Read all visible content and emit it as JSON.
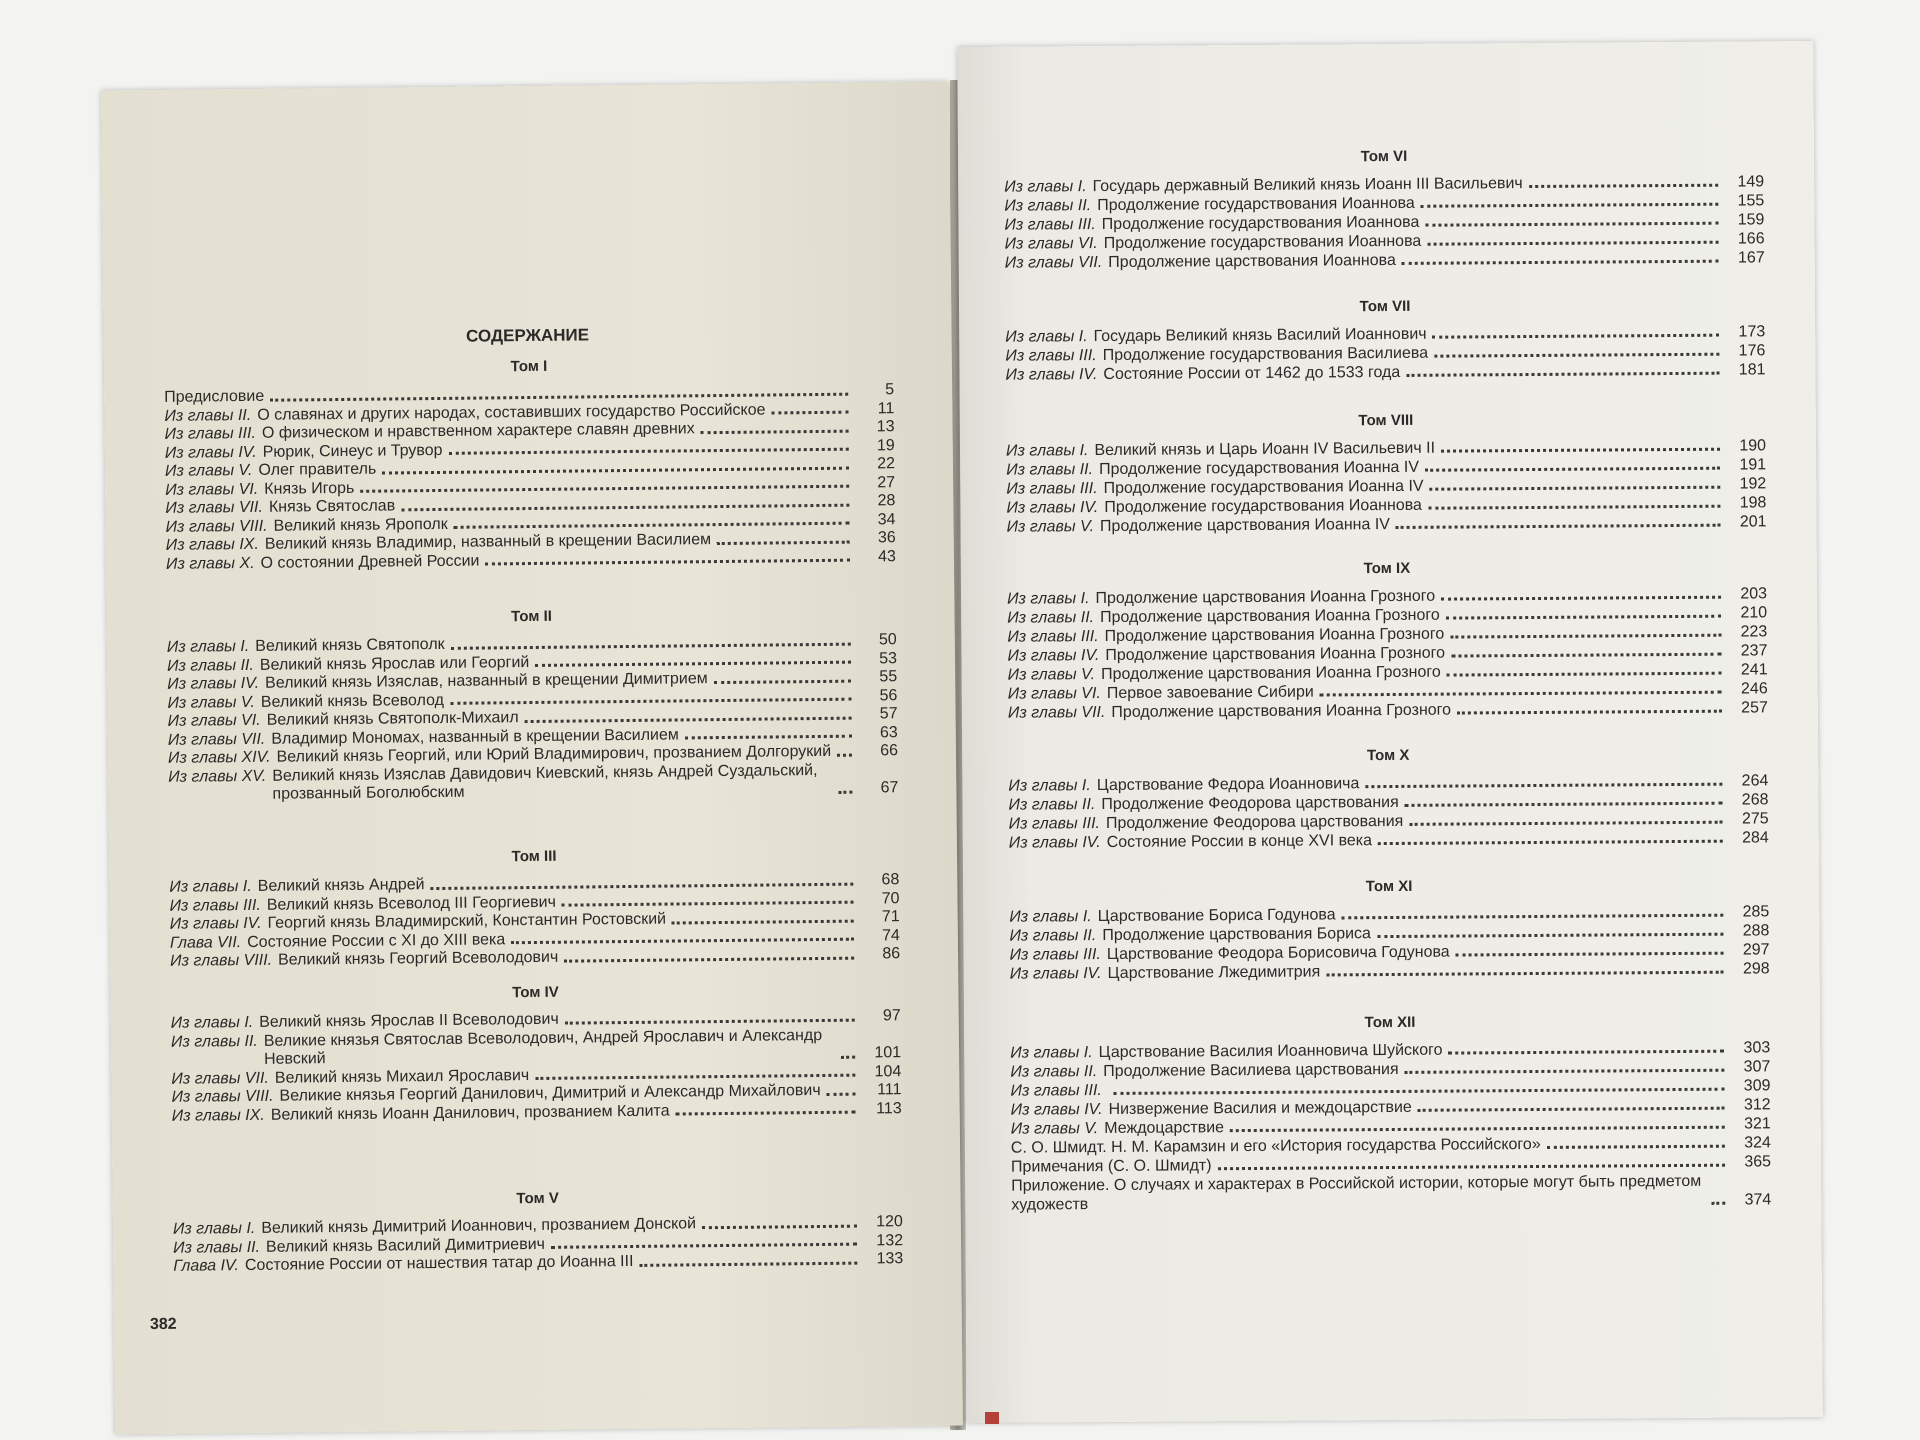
{
  "toc_title": "СОДЕРЖАНИЕ",
  "folio_left": "382",
  "colors": {
    "paper_left": "#e6e2d5",
    "paper_right": "#eceae4",
    "ink": "#2b2a28"
  },
  "left_sections": [
    {
      "heading": "Том I",
      "entries": [
        {
          "prefix": "",
          "text": "Предисловие",
          "page": "5"
        },
        {
          "prefix": "Из главы II.",
          "text": "О славянах и других народах, составивших государство Российское",
          "page": "11"
        },
        {
          "prefix": "Из главы III.",
          "text": "О физическом и нравственном характере славян древних",
          "page": "13"
        },
        {
          "prefix": "Из главы IV.",
          "text": "Рюрик, Синеус и Трувор",
          "page": "19"
        },
        {
          "prefix": "Из главы V.",
          "text": "Олег правитель",
          "page": "22"
        },
        {
          "prefix": "Из главы VI.",
          "text": "Князь Игорь",
          "page": "27"
        },
        {
          "prefix": "Из главы VII.",
          "text": "Князь Святослав",
          "page": "28"
        },
        {
          "prefix": "Из главы VIII.",
          "text": "Великий князь Ярополк",
          "page": "34"
        },
        {
          "prefix": "Из главы IX.",
          "text": "Великий князь Владимир, названный в крещении Василием",
          "page": "36"
        },
        {
          "prefix": "Из главы X.",
          "text": "О состоянии Древней России",
          "page": "43"
        }
      ]
    },
    {
      "heading": "Том II",
      "entries": [
        {
          "prefix": "Из главы I.",
          "text": "Великий князь Святополк",
          "page": "50"
        },
        {
          "prefix": "Из главы II.",
          "text": "Великий князь Ярослав или Георгий",
          "page": "53"
        },
        {
          "prefix": "Из главы IV.",
          "text": "Великий князь Изяслав, названный в крещении Димитрием",
          "page": "55"
        },
        {
          "prefix": "Из главы V.",
          "text": "Великий князь Всеволод",
          "page": "56"
        },
        {
          "prefix": "Из главы VI.",
          "text": "Великий князь Святополк-Михаил",
          "page": "57"
        },
        {
          "prefix": "Из главы VII.",
          "text": "Владимир Мономах, названный в крещении Василием",
          "page": "63"
        },
        {
          "prefix": "Из главы XIV.",
          "text": "Великий князь Георгий, или Юрий Владимирович, прозванием Долгорукий",
          "page": "66"
        },
        {
          "prefix": "Из главы XV.",
          "text": "Великий князь Изяслав Давидович Киевский, князь Андрей Суздальский, прозванный Боголюбским",
          "page": "67"
        }
      ]
    },
    {
      "heading": "Том III",
      "entries": [
        {
          "prefix": "Из главы I.",
          "text": "Великий князь Андрей",
          "page": "68"
        },
        {
          "prefix": "Из главы III.",
          "text": "Великий князь Всеволод III Георгиевич",
          "page": "70"
        },
        {
          "prefix": "Из главы IV.",
          "text": "Георгий князь Владимирский, Константин Ростовский",
          "page": "71"
        },
        {
          "prefix": "Глава VII.",
          "text": "Состояние России с XI до XIII века",
          "page": "74"
        },
        {
          "prefix": "Из главы VIII.",
          "text": "Великий князь Георгий Всеволодович",
          "page": "86"
        }
      ]
    },
    {
      "heading": "Том IV",
      "entries": [
        {
          "prefix": "Из главы I.",
          "text": "Великий князь Ярослав II Всеволодович",
          "page": "97"
        },
        {
          "prefix": "Из главы II.",
          "text": "Великие князья Святослав Всеволодович, Андрей Ярославич и Александр Невский",
          "page": "101"
        },
        {
          "prefix": "Из главы VII.",
          "text": "Великий князь Михаил Ярославич",
          "page": "104"
        },
        {
          "prefix": "Из главы VIII.",
          "text": "Великие князья Георгий Данилович, Димитрий и Александр Михайлович",
          "page": "111"
        },
        {
          "prefix": "Из главы IX.",
          "text": "Великий князь Иоанн Данилович, прозванием Калита",
          "page": "113"
        }
      ]
    },
    {
      "heading": "Том V",
      "entries": [
        {
          "prefix": "Из главы I.",
          "text": "Великий князь Димитрий Иоаннович, прозванием Донской",
          "page": "120"
        },
        {
          "prefix": "Из главы II.",
          "text": "Великий князь Василий Димитриевич",
          "page": "132"
        },
        {
          "prefix": "Глава IV.",
          "text": "Состояние России от нашествия татар до Иоанна III",
          "page": "133"
        }
      ]
    }
  ],
  "right_sections": [
    {
      "heading": "Том VI",
      "entries": [
        {
          "prefix": "Из главы I.",
          "text": "Государь державный Великий князь Иоанн III Васильевич",
          "page": "149"
        },
        {
          "prefix": "Из главы II.",
          "text": "Продолжение государствования Иоаннова",
          "page": "155"
        },
        {
          "prefix": "Из главы III.",
          "text": "Продолжение государствования Иоаннова",
          "page": "159"
        },
        {
          "prefix": "Из главы VI.",
          "text": "Продолжение государствования Иоаннова",
          "page": "166"
        },
        {
          "prefix": "Из главы VII.",
          "text": "Продолжение царствования Иоаннова",
          "page": "167"
        }
      ]
    },
    {
      "heading": "Том VII",
      "entries": [
        {
          "prefix": "Из главы I.",
          "text": "Государь Великий князь Василий Иоаннович",
          "page": "173"
        },
        {
          "prefix": "Из главы III.",
          "text": "Продолжение государствования Василиева",
          "page": "176"
        },
        {
          "prefix": "Из главы IV.",
          "text": "Состояние России от 1462 до 1533 года",
          "page": "181"
        }
      ]
    },
    {
      "heading": "Том VIII",
      "entries": [
        {
          "prefix": "Из главы I.",
          "text": "Великий князь и Царь Иоанн IV Васильевич II",
          "page": "190"
        },
        {
          "prefix": "Из главы II.",
          "text": "Продолжение государствования Иоанна IV",
          "page": "191"
        },
        {
          "prefix": "Из главы III.",
          "text": "Продолжение государствования Иоанна IV",
          "page": "192"
        },
        {
          "prefix": "Из главы IV.",
          "text": "Продолжение государствования Иоаннова",
          "page": "198"
        },
        {
          "prefix": "Из главы V.",
          "text": "Продолжение царствования Иоанна IV",
          "page": "201"
        }
      ]
    },
    {
      "heading": "Том IX",
      "entries": [
        {
          "prefix": "Из главы I.",
          "text": "Продолжение царствования Иоанна Грозного",
          "page": "203"
        },
        {
          "prefix": "Из главы II.",
          "text": "Продолжение царствования Иоанна Грозного",
          "page": "210"
        },
        {
          "prefix": "Из главы III.",
          "text": "Продолжение царствования Иоанна Грозного",
          "page": "223"
        },
        {
          "prefix": "Из главы IV.",
          "text": "Продолжение царствования Иоанна Грозного",
          "page": "237"
        },
        {
          "prefix": "Из главы V.",
          "text": "Продолжение царствования Иоанна Грозного",
          "page": "241"
        },
        {
          "prefix": "Из главы VI.",
          "text": "Первое завоевание Сибири",
          "page": "246"
        },
        {
          "prefix": "Из главы VII.",
          "text": "Продолжение царствования Иоанна Грозного",
          "page": "257"
        }
      ]
    },
    {
      "heading": "Том X",
      "entries": [
        {
          "prefix": "Из главы I.",
          "text": "Царствование Федора Иоанновича",
          "page": "264"
        },
        {
          "prefix": "Из главы II.",
          "text": "Продолжение Феодорова царствования",
          "page": "268"
        },
        {
          "prefix": "Из главы III.",
          "text": "Продолжение Феодорова царствования",
          "page": "275"
        },
        {
          "prefix": "Из главы IV.",
          "text": "Состояние России в конце XVI века",
          "page": "284"
        }
      ]
    },
    {
      "heading": "Том XI",
      "entries": [
        {
          "prefix": "Из главы I.",
          "text": "Царствование Бориса Годунова",
          "page": "285"
        },
        {
          "prefix": "Из главы II.",
          "text": "Продолжение царствования Бориса",
          "page": "288"
        },
        {
          "prefix": "Из главы III.",
          "text": "Царствование Феодора Борисовича Годунова",
          "page": "297"
        },
        {
          "prefix": "Из главы IV.",
          "text": "Царствование Лжедимитрия",
          "page": "298"
        }
      ]
    },
    {
      "heading": "Том XII",
      "entries": [
        {
          "prefix": "Из главы I.",
          "text": "Царствование Василия Иоанновича Шуйского",
          "page": "303"
        },
        {
          "prefix": "Из главы II.",
          "text": "Продолжение Василиева царствования",
          "page": "307"
        },
        {
          "prefix": "Из главы III.",
          "text": "",
          "page": "309"
        },
        {
          "prefix": "Из главы IV.",
          "text": "Низвержение Василия и междоцарствие",
          "page": "312"
        },
        {
          "prefix": "Из главы V.",
          "text": "Междоцарствие",
          "page": "321"
        },
        {
          "prefix": "",
          "text": "С. О. Шмидт. Н. М. Карамзин и его «История государства Российского»",
          "page": "324"
        },
        {
          "prefix": "",
          "text": "Примечания (С. О. Шмидт)",
          "page": "365"
        },
        {
          "prefix": "",
          "text": "Приложение. О случаях и характерах в Российской истории, которые могут быть предметом художеств",
          "page": "374"
        }
      ]
    }
  ]
}
